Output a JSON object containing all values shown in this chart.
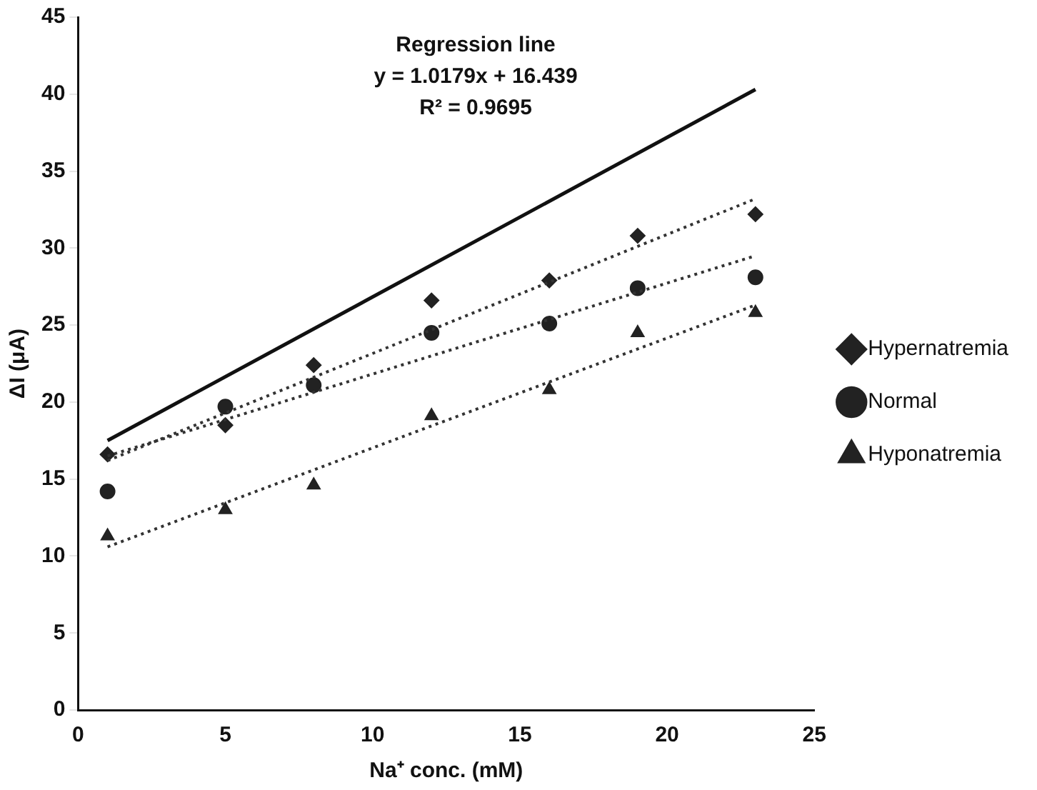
{
  "chart_data": {
    "type": "scatter",
    "xlabel": "Na⁺ conc. (mM)",
    "ylabel": "ΔI (μA)",
    "annotations": [
      "Regression line",
      "y = 1.0179x + 16.439",
      "R² = 0.9695"
    ],
    "xlim": [
      0,
      25
    ],
    "xticks": [
      0,
      5,
      10,
      15,
      20,
      25
    ],
    "ylim": [
      0,
      45
    ],
    "yticks": [
      0,
      5,
      10,
      15,
      20,
      25,
      30,
      35,
      40,
      45
    ],
    "grid": false,
    "legend": "right",
    "series": [
      {
        "type": "line",
        "color": "#111111",
        "marker": "none",
        "line_style": "solid",
        "x": [
          1,
          23
        ],
        "values": [
          17.5,
          40.3
        ]
      },
      {
        "type": "line",
        "color": "#333333",
        "marker": "none",
        "line_style": "dotted",
        "x": [
          1,
          23
        ],
        "values": [
          16.2,
          33.2
        ]
      },
      {
        "type": "line",
        "color": "#333333",
        "marker": "none",
        "line_style": "dotted",
        "x": [
          1,
          23
        ],
        "values": [
          16.5,
          29.5
        ]
      },
      {
        "type": "line",
        "color": "#333333",
        "marker": "none",
        "line_style": "dotted",
        "x": [
          1,
          23
        ],
        "values": [
          10.6,
          26.3
        ]
      },
      {
        "name": "Hypernatremia",
        "color": "#222222",
        "marker": "diamond",
        "x": [
          1,
          5,
          8,
          12,
          16,
          19,
          23
        ],
        "values": [
          16.6,
          18.5,
          22.4,
          26.6,
          27.9,
          30.8,
          32.2
        ]
      },
      {
        "name": "Normal",
        "color": "#222222",
        "marker": "circle",
        "x": [
          1,
          5,
          8,
          12,
          16,
          19,
          23
        ],
        "values": [
          14.2,
          19.7,
          21.1,
          24.5,
          25.1,
          27.4,
          28.1
        ]
      },
      {
        "name": "Hyponatremia",
        "color": "#222222",
        "marker": "triangle",
        "x": [
          1,
          5,
          8,
          12,
          16,
          19,
          23
        ],
        "values": [
          11.3,
          13.0,
          14.6,
          19.1,
          20.8,
          24.5,
          25.8
        ]
      }
    ]
  }
}
